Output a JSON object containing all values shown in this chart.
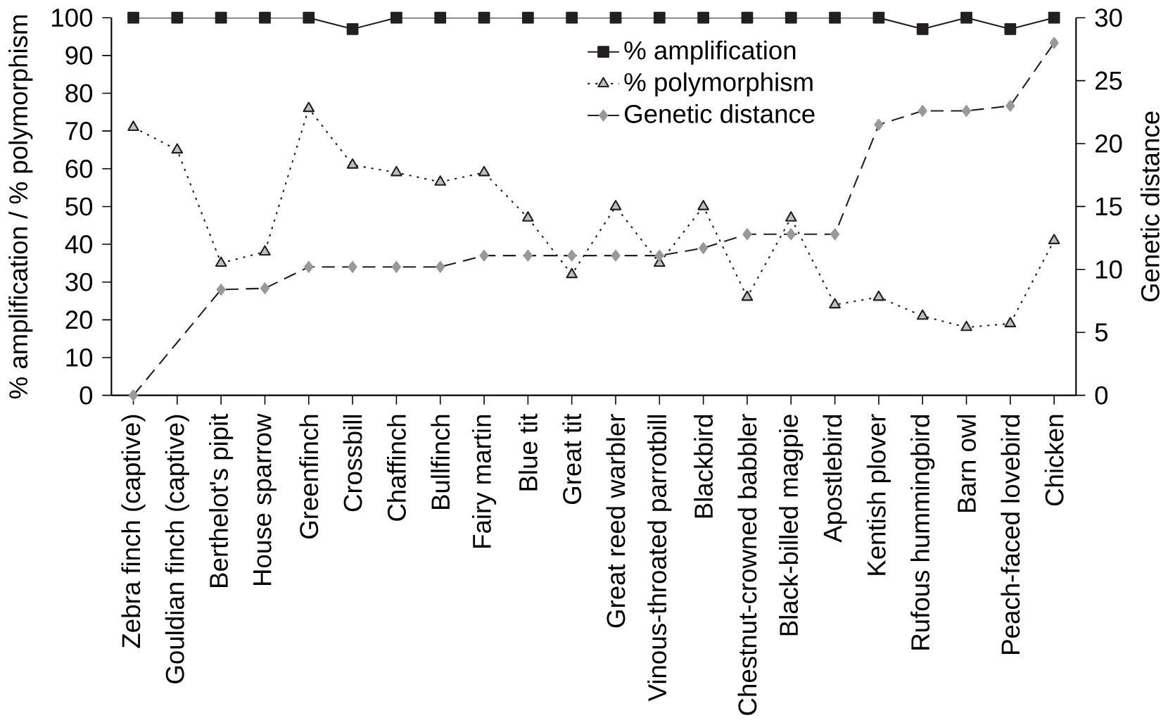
{
  "chart_data": {
    "type": "line",
    "categories": [
      "Zebra finch (captive)",
      "Gouldian finch (captive)",
      "Berthelot's pipit",
      "House sparrow",
      "Greenfinch",
      "Crossbill",
      "Chaffinch",
      "Bullfinch",
      "Fairy martin",
      "Blue tit",
      "Great tit",
      "Great reed warbler",
      "Vinous-throated parrotbill",
      "Blackbird",
      "Chestnut-crowned babbler",
      "Black-billed magpie",
      "Apostlebird",
      "Kentish plover",
      "Rufous hummingbird",
      "Barn owl",
      "Peach-faced lovebird",
      "Chicken"
    ],
    "series": [
      {
        "name": "% amplification",
        "color": "#231f20",
        "marker": "square",
        "line_style": "solid",
        "values": [
          100,
          100,
          100,
          100,
          100,
          97,
          100,
          100,
          100,
          100,
          100,
          100,
          100,
          100,
          100,
          100,
          100,
          100,
          97,
          100,
          97,
          100
        ]
      },
      {
        "name": "% polymorphism",
        "color": "#231f20",
        "marker": "triangle",
        "line_style": "dotted",
        "values": [
          71,
          65,
          35,
          38,
          76,
          61,
          59,
          56.5,
          59,
          47,
          32,
          50,
          35,
          50,
          26,
          47,
          24,
          26,
          21,
          18,
          19,
          41
        ]
      },
      {
        "name": "Genetic distance",
        "color": "#231f20",
        "marker": "diamond",
        "line_style": "dashed",
        "axis": "y2",
        "values": [
          0,
          null,
          8.4,
          8.5,
          10.2,
          10.2,
          10.2,
          10.2,
          11.1,
          11.1,
          11.1,
          11.1,
          11.1,
          11.7,
          12.8,
          12.8,
          12.8,
          21.5,
          22.6,
          22.6,
          23.0,
          28.0
        ]
      }
    ],
    "ylabel": "% amplification / % polymorphism",
    "y2label": "Genetic distance",
    "ylim": [
      0,
      100
    ],
    "yticks": [
      0,
      10,
      20,
      30,
      40,
      50,
      60,
      70,
      80,
      90,
      100
    ],
    "y2lim": [
      0,
      30
    ],
    "y2ticks": [
      0,
      5,
      10,
      15,
      20,
      25,
      30
    ],
    "grid": false,
    "legend": "top right"
  }
}
